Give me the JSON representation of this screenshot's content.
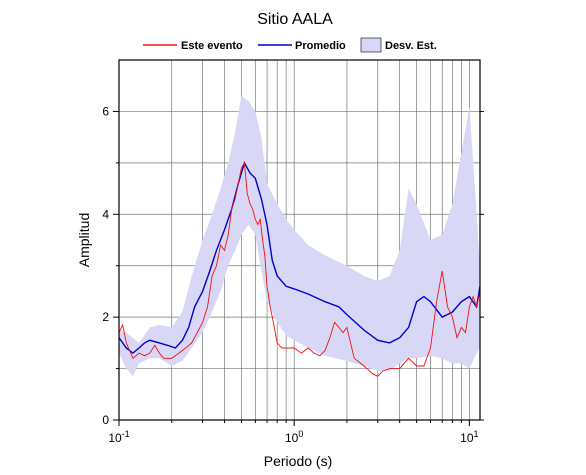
{
  "chart_data": {
    "type": "line",
    "title": "Sitio AALA",
    "xlabel": "Periodo (s)",
    "ylabel": "Amplitud",
    "x_scale": "log",
    "xlim": [
      0.1,
      11.5
    ],
    "ylim": [
      0,
      7
    ],
    "grid": true,
    "legend_position": "top",
    "y_ticks": [
      0,
      2,
      4,
      6
    ],
    "y_tick_labels": [
      "0",
      "2",
      "4",
      "6"
    ],
    "x_ticks": [
      0.1,
      1,
      10
    ],
    "x_tick_labels": [
      {
        "base": "10",
        "exp": "-1"
      },
      {
        "base": "10",
        "exp": "0"
      },
      {
        "base": "10",
        "exp": "1"
      }
    ],
    "band": {
      "name": "Desv. Est.",
      "color": "#d8d8f6",
      "x": [
        0.1,
        0.11,
        0.12,
        0.13,
        0.15,
        0.17,
        0.2,
        0.23,
        0.26,
        0.3,
        0.34,
        0.38,
        0.42,
        0.46,
        0.5,
        0.55,
        0.6,
        0.65,
        0.7,
        0.8,
        0.9,
        1.0,
        1.2,
        1.5,
        2.0,
        2.5,
        3.0,
        3.5,
        4.0,
        4.5,
        5.0,
        6.0,
        7.0,
        8.0,
        9.0,
        10.0,
        11.0,
        11.5
      ],
      "upper": [
        1.75,
        1.7,
        1.6,
        1.5,
        1.8,
        1.85,
        1.8,
        2.1,
        2.8,
        3.5,
        4.0,
        4.5,
        5.0,
        5.6,
        6.3,
        6.2,
        6.0,
        5.5,
        4.6,
        4.2,
        3.9,
        3.7,
        3.4,
        3.2,
        3.0,
        2.8,
        2.7,
        2.8,
        3.3,
        4.5,
        4.2,
        3.5,
        3.6,
        4.2,
        5.2,
        6.1,
        4.0,
        3.0
      ],
      "lower": [
        1.3,
        1.0,
        0.85,
        1.1,
        1.2,
        1.2,
        1.05,
        1.15,
        1.4,
        1.7,
        2.1,
        2.5,
        3.0,
        3.3,
        3.6,
        3.8,
        3.6,
        2.9,
        2.3,
        1.9,
        1.65,
        1.55,
        1.4,
        1.25,
        1.15,
        1.05,
        0.95,
        0.95,
        1.1,
        1.2,
        1.2,
        1.25,
        1.2,
        1.1,
        1.1,
        1.0,
        1.3,
        1.4
      ]
    },
    "series": [
      {
        "name": "Promedio",
        "color": "#0000cc",
        "x": [
          0.1,
          0.11,
          0.12,
          0.13,
          0.14,
          0.15,
          0.17,
          0.19,
          0.21,
          0.23,
          0.25,
          0.27,
          0.3,
          0.33,
          0.36,
          0.4,
          0.44,
          0.48,
          0.52,
          0.56,
          0.6,
          0.65,
          0.7,
          0.75,
          0.8,
          0.9,
          1.0,
          1.2,
          1.5,
          1.8,
          2.0,
          2.5,
          3.0,
          3.5,
          4.0,
          4.5,
          5.0,
          5.5,
          6.0,
          7.0,
          8.0,
          9.0,
          10.0,
          11.0,
          11.5
        ],
        "values": [
          1.6,
          1.4,
          1.3,
          1.4,
          1.5,
          1.55,
          1.5,
          1.45,
          1.4,
          1.55,
          1.8,
          2.2,
          2.5,
          2.9,
          3.3,
          3.7,
          4.1,
          4.6,
          5.0,
          4.8,
          4.7,
          4.3,
          3.8,
          3.1,
          2.8,
          2.6,
          2.55,
          2.45,
          2.3,
          2.2,
          2.05,
          1.75,
          1.55,
          1.5,
          1.6,
          1.8,
          2.3,
          2.4,
          2.3,
          2.0,
          2.1,
          2.3,
          2.4,
          2.2,
          2.6
        ]
      },
      {
        "name": "Este evento",
        "color": "#ee1111",
        "x": [
          0.1,
          0.105,
          0.11,
          0.12,
          0.13,
          0.14,
          0.15,
          0.16,
          0.17,
          0.18,
          0.2,
          0.22,
          0.24,
          0.26,
          0.28,
          0.3,
          0.32,
          0.34,
          0.36,
          0.38,
          0.4,
          0.42,
          0.44,
          0.46,
          0.48,
          0.5,
          0.52,
          0.54,
          0.56,
          0.58,
          0.6,
          0.62,
          0.64,
          0.66,
          0.68,
          0.7,
          0.73,
          0.76,
          0.8,
          0.85,
          0.9,
          1.0,
          1.1,
          1.2,
          1.3,
          1.4,
          1.5,
          1.6,
          1.7,
          1.8,
          1.9,
          2.0,
          2.2,
          2.4,
          2.6,
          2.8,
          3.0,
          3.2,
          3.5,
          4.0,
          4.5,
          5.0,
          5.5,
          6.0,
          6.5,
          7.0,
          7.5,
          8.0,
          8.5,
          9.0,
          9.5,
          10.0,
          10.5,
          11.0,
          11.5
        ],
        "values": [
          1.7,
          1.85,
          1.5,
          1.2,
          1.3,
          1.25,
          1.3,
          1.45,
          1.3,
          1.2,
          1.2,
          1.3,
          1.4,
          1.5,
          1.7,
          1.9,
          2.2,
          2.8,
          3.0,
          3.4,
          3.3,
          3.6,
          4.1,
          4.3,
          4.6,
          4.9,
          5.0,
          4.4,
          4.2,
          4.1,
          3.9,
          3.8,
          3.9,
          3.5,
          3.2,
          2.6,
          2.2,
          1.9,
          1.5,
          1.4,
          1.4,
          1.4,
          1.3,
          1.4,
          1.3,
          1.25,
          1.35,
          1.6,
          1.9,
          1.8,
          1.7,
          1.8,
          1.2,
          1.1,
          1.0,
          0.9,
          0.85,
          0.95,
          1.0,
          1.0,
          1.2,
          1.05,
          1.05,
          1.4,
          2.3,
          2.9,
          2.2,
          2.0,
          1.6,
          1.8,
          1.7,
          2.2,
          2.4,
          2.2,
          2.5
        ]
      }
    ]
  }
}
